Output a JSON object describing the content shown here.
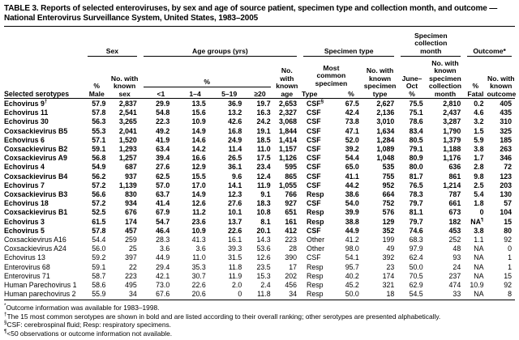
{
  "title": "TABLE 3. Reports of selected enteroviruses, by sex and age of source patient, specimen type and collection month, and outcome — National Enterovirus Surveillance System, United States, 1983–2005",
  "table": {
    "spanners": {
      "sex": "Sex",
      "age_groups": "Age groups (yrs)",
      "age_pct": "%",
      "specimen_type": "Specimen type",
      "collection_month": "Specimen\ncollection\nmonth",
      "outcome": "Outcome*"
    },
    "headers": {
      "serotypes": "Selected serotypes",
      "pct_male": "%\nMale",
      "known_sex": "No. with\nknown\nsex",
      "age_lt1": "<1",
      "age_1_4": "1–4",
      "age_5_19": "5–19",
      "age_ge20": "≥20",
      "known_age": "No. with\nknown\nage",
      "most_common": "Most\ncommon\nspecimen",
      "type": "Type",
      "type_pct": "%",
      "known_specimen": "No. with\nknown\nspecimen\ntype",
      "june_oct": "June–\nOct\n%",
      "known_collection": "No. with\nknown\nspecimen\ncollection\nmonth",
      "pct_fatal": "%\nFatal",
      "known_outcome": "No. with\nknown\noutcome"
    },
    "rows": [
      {
        "serotype": "Echovirus 9†",
        "bold": true,
        "cells": [
          "57.9",
          "2,837",
          "29.9",
          "13.5",
          "36.9",
          "19.7",
          "2,653",
          "CSF§",
          "67.5",
          "2,627",
          "75.5",
          "2,810",
          "0.2",
          "405"
        ]
      },
      {
        "serotype": "Echovirus 11",
        "bold": true,
        "cells": [
          "57.8",
          "2,541",
          "54.8",
          "15.6",
          "13.2",
          "16.3",
          "2,327",
          "CSF",
          "42.4",
          "2,136",
          "75.1",
          "2,437",
          "4.6",
          "435"
        ]
      },
      {
        "serotype": "Echovirus 30",
        "bold": true,
        "cells": [
          "56.3",
          "3,265",
          "22.3",
          "10.9",
          "42.6",
          "24.2",
          "3,068",
          "CSF",
          "73.8",
          "3,010",
          "78.6",
          "3,287",
          "3.2",
          "310"
        ]
      },
      {
        "serotype": "Coxsackievirus B5",
        "bold": true,
        "cells": [
          "55.3",
          "2,041",
          "49.2",
          "14.9",
          "16.8",
          "19.1",
          "1,844",
          "CSF",
          "47.1",
          "1,634",
          "83.4",
          "1,790",
          "1.5",
          "325"
        ]
      },
      {
        "serotype": "Echovirus 6",
        "bold": true,
        "cells": [
          "57.1",
          "1,520",
          "41.9",
          "14.6",
          "24.9",
          "18.5",
          "1,414",
          "CSF",
          "52.0",
          "1,284",
          "80.5",
          "1,379",
          "5.9",
          "185"
        ]
      },
      {
        "serotype": "Coxsackievirus B2",
        "bold": true,
        "cells": [
          "59.1",
          "1,293",
          "63.4",
          "14.2",
          "11.4",
          "11.0",
          "1,157",
          "CSF",
          "39.2",
          "1,089",
          "79.1",
          "1,188",
          "3.8",
          "263"
        ]
      },
      {
        "serotype": "Coxsackievirus A9",
        "bold": true,
        "cells": [
          "56.8",
          "1,257",
          "39.4",
          "16.6",
          "26.5",
          "17.5",
          "1,126",
          "CSF",
          "54.4",
          "1,048",
          "80.9",
          "1,176",
          "1.7",
          "346"
        ]
      },
      {
        "serotype": "Echovirus 4",
        "bold": true,
        "cells": [
          "54.9",
          "687",
          "27.6",
          "12.9",
          "36.1",
          "23.4",
          "595",
          "CSF",
          "65.0",
          "535",
          "80.0",
          "636",
          "2.8",
          "72"
        ]
      },
      {
        "serotype": "Coxsackievirus B4",
        "bold": true,
        "cells": [
          "56.2",
          "937",
          "62.5",
          "15.5",
          "9.6",
          "12.4",
          "865",
          "CSF",
          "41.1",
          "755",
          "81.7",
          "861",
          "9.8",
          "123"
        ]
      },
      {
        "serotype": "Echovirus 7",
        "bold": true,
        "cells": [
          "57.2",
          "1,139",
          "57.0",
          "17.0",
          "14.1",
          "11.9",
          "1,055",
          "CSF",
          "44.2",
          "952",
          "76.5",
          "1,214",
          "2.5",
          "203"
        ]
      },
      {
        "serotype": "Coxsackievirus B3",
        "bold": true,
        "cells": [
          "56.6",
          "830",
          "63.7",
          "14.9",
          "12.3",
          "9.1",
          "766",
          "Resp",
          "38.6",
          "664",
          "78.3",
          "787",
          "5.4",
          "130"
        ]
      },
      {
        "serotype": "Echovirus 18",
        "bold": true,
        "cells": [
          "57.2",
          "934",
          "41.4",
          "12.6",
          "27.6",
          "18.3",
          "927",
          "CSF",
          "54.0",
          "752",
          "79.7",
          "661",
          "1.8",
          "57"
        ]
      },
      {
        "serotype": "Coxsackievirus B1",
        "bold": true,
        "cells": [
          "52.5",
          "676",
          "67.9",
          "11.2",
          "10.1",
          "10.8",
          "651",
          "Resp",
          "39.9",
          "576",
          "81.1",
          "673",
          "0",
          "104"
        ]
      },
      {
        "serotype": "Echovirus 3",
        "bold": true,
        "cells": [
          "61.5",
          "174",
          "54.7",
          "23.6",
          "13.7",
          "8.1",
          "161",
          "Resp",
          "38.8",
          "129",
          "79.7",
          "182",
          "NA¶",
          "15"
        ]
      },
      {
        "serotype": "Echovirus 5",
        "bold": true,
        "cells": [
          "57.8",
          "457",
          "46.4",
          "10.9",
          "22.6",
          "20.1",
          "412",
          "CSF",
          "44.9",
          "352",
          "74.6",
          "453",
          "3.8",
          "80"
        ]
      },
      {
        "serotype": "Coxsackievirus A16",
        "bold": false,
        "cells": [
          "54.4",
          "259",
          "28.3",
          "41.3",
          "16.1",
          "14.3",
          "223",
          "Other",
          "41.2",
          "199",
          "68.3",
          "252",
          "1.1",
          "92"
        ]
      },
      {
        "serotype": "Coxsackievirus A24",
        "bold": false,
        "cells": [
          "56.0",
          "25",
          "3.6",
          "3.6",
          "39.3",
          "53.6",
          "28",
          "Other",
          "98.0",
          "49",
          "97.9",
          "48",
          "NA",
          "0"
        ]
      },
      {
        "serotype": "Echovirus 13",
        "bold": false,
        "cells": [
          "59.2",
          "397",
          "44.9",
          "11.0",
          "31.5",
          "12.6",
          "390",
          "CSF",
          "54.1",
          "392",
          "62.4",
          "93",
          "NA",
          "1"
        ]
      },
      {
        "serotype": "Enterovirus 68",
        "bold": false,
        "cells": [
          "59.1",
          "22",
          "29.4",
          "35.3",
          "11.8",
          "23.5",
          "17",
          "Resp",
          "95.7",
          "23",
          "50.0",
          "24",
          "NA",
          "1"
        ]
      },
      {
        "serotype": "Enterovirus 71",
        "bold": false,
        "cells": [
          "58.7",
          "223",
          "42.1",
          "30.7",
          "11.9",
          "15.3",
          "202",
          "Resp",
          "40.2",
          "174",
          "70.5",
          "237",
          "NA",
          "15"
        ]
      },
      {
        "serotype": "Human Parechovirus 1",
        "bold": false,
        "cells": [
          "58.6",
          "495",
          "73.0",
          "22.6",
          "2.0",
          "2.4",
          "456",
          "Resp",
          "45.2",
          "321",
          "62.9",
          "474",
          "10.9",
          "92"
        ]
      },
      {
        "serotype": "Human parechovirus 2",
        "bold": false,
        "cells": [
          "55.9",
          "34",
          "67.6",
          "20.6",
          "0",
          "11.8",
          "34",
          "Resp",
          "50.0",
          "18",
          "54.5",
          "33",
          "NA",
          "8"
        ]
      }
    ]
  },
  "footnotes": [
    {
      "symbol": "*",
      "text": "Outcome information was available for 1983–1998."
    },
    {
      "symbol": "†",
      "text": "The 15 most common serotypes are shown in bold and are listed according to their overall ranking; other serotypes are presented alphabetically."
    },
    {
      "symbol": "§",
      "text": "CSF: cerebrospinal fluid; Resp: respiratory specimens."
    },
    {
      "symbol": "¶",
      "text": "<50 observations or outcome information not available."
    }
  ]
}
